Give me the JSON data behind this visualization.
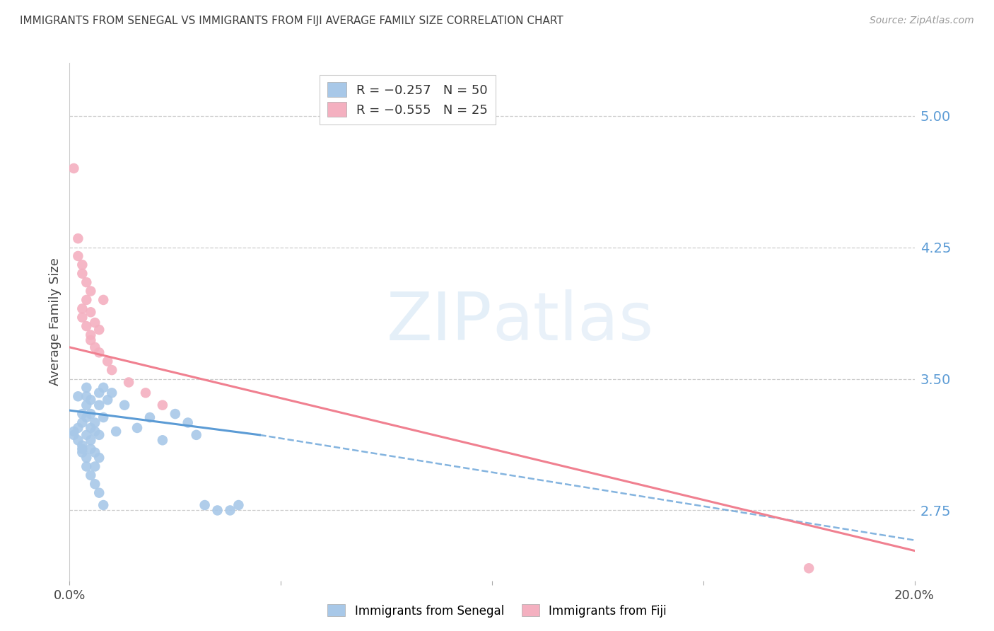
{
  "title": "IMMIGRANTS FROM SENEGAL VS IMMIGRANTS FROM FIJI AVERAGE FAMILY SIZE CORRELATION CHART",
  "source": "Source: ZipAtlas.com",
  "ylabel": "Average Family Size",
  "right_yticks": [
    5.0,
    4.25,
    3.5,
    2.75
  ],
  "xlim": [
    0.0,
    0.2
  ],
  "ylim": [
    2.35,
    5.3
  ],
  "watermark": "ZIPatlas",
  "senegal_points": [
    [
      0.001,
      3.2
    ],
    [
      0.001,
      3.18
    ],
    [
      0.002,
      3.15
    ],
    [
      0.002,
      3.22
    ],
    [
      0.002,
      3.4
    ],
    [
      0.003,
      3.1
    ],
    [
      0.003,
      3.25
    ],
    [
      0.003,
      3.3
    ],
    [
      0.003,
      3.12
    ],
    [
      0.003,
      3.08
    ],
    [
      0.004,
      3.35
    ],
    [
      0.004,
      3.28
    ],
    [
      0.004,
      3.05
    ],
    [
      0.004,
      3.4
    ],
    [
      0.004,
      3.18
    ],
    [
      0.004,
      3.0
    ],
    [
      0.004,
      3.45
    ],
    [
      0.005,
      3.22
    ],
    [
      0.005,
      3.1
    ],
    [
      0.005,
      3.38
    ],
    [
      0.005,
      3.15
    ],
    [
      0.005,
      2.95
    ],
    [
      0.005,
      3.3
    ],
    [
      0.006,
      3.08
    ],
    [
      0.006,
      2.9
    ],
    [
      0.006,
      3.25
    ],
    [
      0.006,
      3.0
    ],
    [
      0.006,
      3.2
    ],
    [
      0.007,
      2.85
    ],
    [
      0.007,
      3.42
    ],
    [
      0.007,
      3.18
    ],
    [
      0.007,
      3.35
    ],
    [
      0.007,
      3.05
    ],
    [
      0.008,
      3.28
    ],
    [
      0.008,
      2.78
    ],
    [
      0.008,
      3.45
    ],
    [
      0.009,
      3.38
    ],
    [
      0.01,
      3.42
    ],
    [
      0.011,
      3.2
    ],
    [
      0.013,
      3.35
    ],
    [
      0.016,
      3.22
    ],
    [
      0.019,
      3.28
    ],
    [
      0.022,
      3.15
    ],
    [
      0.025,
      3.3
    ],
    [
      0.028,
      3.25
    ],
    [
      0.03,
      3.18
    ],
    [
      0.032,
      2.78
    ],
    [
      0.035,
      2.75
    ],
    [
      0.038,
      2.75
    ],
    [
      0.04,
      2.78
    ]
  ],
  "fiji_points": [
    [
      0.001,
      4.7
    ],
    [
      0.002,
      4.2
    ],
    [
      0.002,
      4.3
    ],
    [
      0.003,
      4.1
    ],
    [
      0.003,
      4.15
    ],
    [
      0.003,
      3.9
    ],
    [
      0.003,
      3.85
    ],
    [
      0.004,
      3.8
    ],
    [
      0.004,
      4.05
    ],
    [
      0.004,
      3.95
    ],
    [
      0.005,
      3.75
    ],
    [
      0.005,
      3.88
    ],
    [
      0.005,
      4.0
    ],
    [
      0.005,
      3.72
    ],
    [
      0.006,
      3.82
    ],
    [
      0.006,
      3.68
    ],
    [
      0.007,
      3.78
    ],
    [
      0.007,
      3.65
    ],
    [
      0.008,
      3.95
    ],
    [
      0.009,
      3.6
    ],
    [
      0.01,
      3.55
    ],
    [
      0.014,
      3.48
    ],
    [
      0.018,
      3.42
    ],
    [
      0.022,
      3.35
    ],
    [
      0.175,
      2.42
    ]
  ],
  "senegal_line_x": [
    0.0,
    0.045
  ],
  "senegal_line_y": [
    3.32,
    3.18
  ],
  "fiji_line_x": [
    0.0,
    0.2
  ],
  "fiji_line_y": [
    3.68,
    2.52
  ],
  "dash_line_x": [
    0.045,
    0.2
  ],
  "dash_line_y": [
    3.18,
    2.58
  ],
  "senegal_color": "#5b9bd5",
  "fiji_color": "#f08090",
  "senegal_scatter_color": "#a8c8e8",
  "fiji_scatter_color": "#f4b0c0",
  "grid_color": "#cccccc",
  "title_color": "#404040",
  "right_tick_color": "#5b9bd5",
  "background_color": "#ffffff"
}
